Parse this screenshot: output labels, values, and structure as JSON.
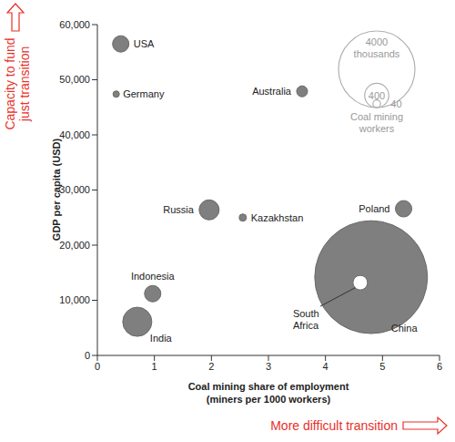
{
  "chart_data": {
    "type": "scatter",
    "marker": "circle",
    "x_label": "Coal mining share of employment (miners per 1000 workers)",
    "y_label": "GDP per capita (USD)",
    "xlim": [
      0,
      6
    ],
    "xticks": [
      0,
      1,
      2,
      3,
      4,
      5,
      6
    ],
    "ylim": [
      0,
      60000
    ],
    "yticks": [
      0,
      {
        "value": 10000,
        "label": "10,000"
      },
      {
        "value": 20000,
        "label": "20,000"
      },
      {
        "value": 30000,
        "label": "30,000"
      },
      {
        "value": 40000,
        "label": "40,000"
      },
      {
        "value": 50000,
        "label": "50,000"
      },
      {
        "value": 60000,
        "label": "60,000"
      }
    ],
    "points": [
      {
        "name": "USA",
        "x": 0.41,
        "y": 56500,
        "size": 184
      },
      {
        "name": "Germany",
        "x": 0.33,
        "y": 47400,
        "size": 28
      },
      {
        "name": "Australia",
        "x": 3.59,
        "y": 47900,
        "size": 82
      },
      {
        "name": "Russia",
        "x": 1.96,
        "y": 26400,
        "size": 274
      },
      {
        "name": "Kazakhstan",
        "x": 2.55,
        "y": 25000,
        "size": 36
      },
      {
        "name": "Poland",
        "x": 5.37,
        "y": 26600,
        "size": 184
      },
      {
        "name": "Indonesia",
        "x": 0.97,
        "y": 11200,
        "size": 184
      },
      {
        "name": "India",
        "x": 0.7,
        "y": 6100,
        "size": 580
      },
      {
        "name": "China",
        "x": 4.8,
        "y": 14200,
        "size": 8700
      },
      {
        "name": "South Africa",
        "x": 4.61,
        "y": 13200,
        "size": 145
      }
    ],
    "colors": [
      "#7f7f7f",
      "#7f7f7f",
      "#7f7f7f",
      "#7f7f7f",
      "#7f7f7f",
      "#7f7f7f",
      "#7f7f7f",
      "#7f7f7f",
      "#7f7f7f",
      "#ffffff"
    ],
    "size_legend": {
      "title": "Coal mining workers",
      "unit": "thousands",
      "sizes": [
        4000,
        400,
        40
      ],
      "color": "#b0b0b0"
    },
    "annotations": [
      {
        "text": "Capacity to fund just transition",
        "color": "#e8312a"
      },
      {
        "text": "More difficult transition",
        "color": "#e8312a"
      }
    ]
  }
}
